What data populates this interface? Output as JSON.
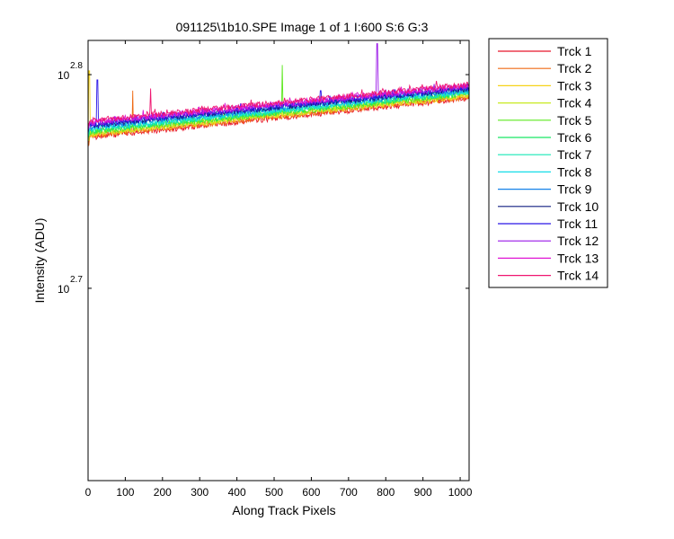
{
  "chart_data": {
    "type": "line",
    "title": "091125\\1b10.SPE  Image 1 of 1  I:600  S:6  G:3",
    "xlabel": "Along Track Pixels",
    "ylabel": "Intensity (ADU)",
    "xlim": [
      0,
      1024
    ],
    "ylim_log10": [
      2.61,
      2.816
    ],
    "yscale": "log",
    "x_ticks": [
      0,
      100,
      200,
      300,
      400,
      500,
      600,
      700,
      800,
      900,
      1000
    ],
    "y_ticks": [
      {
        "base": "10",
        "exp": "2.7",
        "log10": 2.7
      },
      {
        "base": "10",
        "exp": "2.8",
        "log10": 2.8
      }
    ],
    "grid": false,
    "legend_position": "outside-right",
    "series": [
      {
        "name": "Trck 1",
        "color": "#e8162a",
        "start_log10": 2.7706,
        "end_log10": 2.7889,
        "spikes": []
      },
      {
        "name": "Trck 2",
        "color": "#ef6a15",
        "start_log10": 2.7712,
        "end_log10": 2.7894,
        "spikes": [
          {
            "x": 120,
            "log10": 2.7925
          }
        ]
      },
      {
        "name": "Trck 3",
        "color": "#f6d21a",
        "start_log10": 2.7718,
        "end_log10": 2.7899,
        "spikes": [
          {
            "x": 3,
            "log10": 2.8018
          }
        ]
      },
      {
        "name": "Trck 4",
        "color": "#c8ea20",
        "start_log10": 2.7724,
        "end_log10": 2.7904,
        "spikes": []
      },
      {
        "name": "Trck 5",
        "color": "#5ce81e",
        "start_log10": 2.773,
        "end_log10": 2.7909,
        "spikes": [
          {
            "x": 522,
            "log10": 2.8045
          }
        ]
      },
      {
        "name": "Trck 6",
        "color": "#19e864",
        "start_log10": 2.7736,
        "end_log10": 2.7914,
        "spikes": []
      },
      {
        "name": "Trck 7",
        "color": "#17e8b6",
        "start_log10": 2.7742,
        "end_log10": 2.7919,
        "spikes": []
      },
      {
        "name": "Trck 8",
        "color": "#15dce8",
        "start_log10": 2.7748,
        "end_log10": 2.7924,
        "spikes": []
      },
      {
        "name": "Trck 9",
        "color": "#1582e8",
        "start_log10": 2.7754,
        "end_log10": 2.7929,
        "spikes": [
          {
            "x": 1010,
            "log10": 2.7927
          }
        ]
      },
      {
        "name": "Trck 10",
        "color": "#101e82",
        "start_log10": 2.776,
        "end_log10": 2.7934,
        "spikes": []
      },
      {
        "name": "Trck 11",
        "color": "#2a16e8",
        "start_log10": 2.7766,
        "end_log10": 2.7939,
        "spikes": [
          {
            "x": 25,
            "log10": 2.7975
          },
          {
            "x": 625,
            "log10": 2.7925
          }
        ]
      },
      {
        "name": "Trck 12",
        "color": "#9a16e8",
        "start_log10": 2.7772,
        "end_log10": 2.7944,
        "spikes": [
          {
            "x": 777,
            "log10": 2.8145
          }
        ]
      },
      {
        "name": "Trck 13",
        "color": "#e016d4",
        "start_log10": 2.7778,
        "end_log10": 2.7949,
        "spikes": []
      },
      {
        "name": "Trck 14",
        "color": "#ef1670",
        "start_log10": 2.7784,
        "end_log10": 2.7954,
        "spikes": [
          {
            "x": 168,
            "log10": 2.7935
          }
        ]
      }
    ]
  }
}
